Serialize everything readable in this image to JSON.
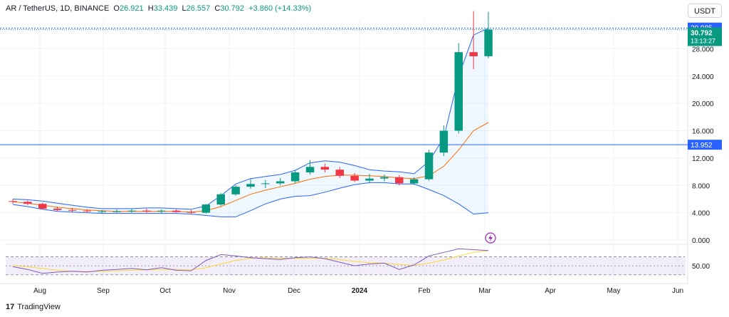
{
  "header": {
    "symbol": "AR / TetherUS, 1D, BINANCE",
    "open_label": "O",
    "open": "26.921",
    "high_label": "H",
    "high": "33.439",
    "low_label": "L",
    "low": "26.557",
    "close_label": "C",
    "close": "30.792",
    "change": "+3.860 (+14.33%)"
  },
  "currency_button": "USDT",
  "branding": {
    "logo_text": "17",
    "name": "TradingView"
  },
  "price_tags": {
    "high_line": "30.985",
    "last_price": "30.792",
    "countdown": "13:13:27",
    "support": "13.952"
  },
  "colors": {
    "up": "#089981",
    "down": "#f23645",
    "band": "#2962ff",
    "basis": "#ff6d00",
    "rsi": "#7e57c2",
    "rsi_ma": "#fdd835"
  },
  "chart_data": [
    {
      "type": "candlestick",
      "title": "",
      "xlabel": "",
      "ylabel": "",
      "y_ticks": [
        "0.000",
        "4.000",
        "8.000",
        "12.000",
        "16.000",
        "20.000",
        "24.000",
        "28.000"
      ],
      "x_ticks": [
        "Aug",
        "Sep",
        "Oct",
        "Nov",
        "Dec",
        "2024",
        "Feb",
        "Mar",
        "Apr",
        "May",
        "Jun"
      ],
      "ylim": [
        0,
        32
      ],
      "horizontal_lines": [
        30.985,
        13.952
      ],
      "series": [
        {
          "name": "",
          "x": [
            "Jul 23",
            "Jul 30",
            "Aug 6",
            "Aug 13",
            "Aug 20",
            "Aug 27",
            "Sep 3",
            "Sep 10",
            "Sep 17",
            "Sep 24",
            "Oct 1",
            "Oct 8",
            "Oct 15",
            "Oct 22",
            "Oct 29",
            "Nov 5",
            "Nov 12",
            "Nov 19",
            "Nov 26",
            "Dec 3",
            "Dec 10",
            "Dec 17",
            "Dec 24",
            "Dec 31",
            "Jan 7",
            "Jan 14",
            "Jan 21",
            "Jan 28",
            "Feb 4",
            "Feb 11",
            "Feb 18",
            "Feb 25",
            "Mar 1"
          ],
          "open": [
            5.7,
            5.6,
            5.3,
            4.6,
            4.4,
            4.3,
            4.2,
            4.2,
            4.2,
            4.3,
            4.2,
            4.3,
            4.1,
            4.0,
            5.2,
            6.7,
            7.8,
            8.2,
            8.3,
            8.6,
            9.9,
            10.7,
            10.3,
            9.4,
            8.7,
            9.0,
            9.2,
            8.3,
            8.9,
            12.8,
            16.0,
            27.5,
            26.9
          ],
          "high": [
            6.0,
            5.8,
            5.5,
            4.9,
            4.7,
            4.5,
            4.4,
            4.5,
            4.6,
            4.6,
            4.5,
            4.5,
            4.4,
            5.3,
            6.9,
            8.0,
            9.0,
            8.8,
            9.1,
            10.2,
            11.7,
            11.2,
            10.7,
            9.8,
            9.7,
            9.6,
            9.5,
            9.2,
            13.2,
            16.8,
            28.8,
            33.5,
            33.4
          ],
          "low": [
            5.3,
            5.1,
            4.5,
            4.2,
            4.1,
            4.0,
            3.9,
            4.0,
            4.0,
            4.0,
            3.9,
            4.0,
            3.8,
            3.9,
            5.0,
            6.5,
            7.5,
            7.6,
            8.0,
            8.3,
            9.6,
            9.9,
            9.1,
            8.5,
            8.3,
            8.6,
            8.0,
            8.1,
            8.7,
            12.3,
            15.6,
            25.0,
            26.6
          ],
          "close": [
            5.6,
            5.3,
            4.6,
            4.4,
            4.3,
            4.2,
            4.2,
            4.2,
            4.3,
            4.2,
            4.3,
            4.1,
            4.0,
            5.2,
            6.7,
            7.8,
            8.2,
            8.3,
            8.6,
            9.9,
            10.7,
            10.3,
            9.4,
            8.7,
            9.0,
            9.2,
            8.3,
            8.9,
            12.8,
            16.0,
            27.5,
            26.9,
            30.8
          ]
        }
      ],
      "bollinger": {
        "upper": [
          6.0,
          5.9,
          5.7,
          5.4,
          5.1,
          4.8,
          4.6,
          4.6,
          4.6,
          4.7,
          4.7,
          4.6,
          4.5,
          5.0,
          6.5,
          8.2,
          9.0,
          9.3,
          9.6,
          10.2,
          11.3,
          11.6,
          11.4,
          10.9,
          10.3,
          10.1,
          10.0,
          9.7,
          11.5,
          15.0,
          24.0,
          30.0,
          31.0
        ],
        "basis": [
          5.6,
          5.4,
          5.1,
          4.8,
          4.6,
          4.4,
          4.3,
          4.2,
          4.2,
          4.2,
          4.2,
          4.2,
          4.1,
          4.3,
          4.9,
          5.8,
          6.7,
          7.3,
          7.8,
          8.3,
          8.9,
          9.3,
          9.5,
          9.5,
          9.4,
          9.3,
          9.1,
          9.0,
          9.4,
          10.8,
          13.2,
          16.0,
          17.2
        ],
        "lower": [
          5.2,
          4.9,
          4.5,
          4.2,
          4.1,
          4.0,
          3.9,
          3.9,
          3.9,
          3.9,
          3.9,
          3.9,
          3.8,
          3.6,
          3.4,
          3.4,
          4.3,
          5.3,
          6.0,
          6.4,
          6.5,
          7.0,
          7.6,
          8.1,
          8.4,
          8.4,
          8.2,
          8.2,
          7.4,
          6.5,
          5.3,
          3.8,
          4.0
        ]
      }
    },
    {
      "type": "line",
      "title": "",
      "y_ticks": [
        "50.00"
      ],
      "ylim": [
        20,
        90
      ],
      "guide_levels": [
        70,
        50,
        30
      ],
      "series": [
        {
          "name": "",
          "x": [
            "Jul 23",
            "Jul 30",
            "Aug 6",
            "Aug 13",
            "Aug 20",
            "Aug 27",
            "Sep 3",
            "Sep 10",
            "Sep 17",
            "Sep 24",
            "Oct 1",
            "Oct 8",
            "Oct 15",
            "Oct 22",
            "Oct 29",
            "Nov 5",
            "Nov 12",
            "Nov 19",
            "Nov 26",
            "Dec 3",
            "Dec 10",
            "Dec 17",
            "Dec 24",
            "Dec 31",
            "Jan 7",
            "Jan 14",
            "Jan 21",
            "Jan 28",
            "Feb 4",
            "Feb 11",
            "Feb 18",
            "Feb 25",
            "Mar 1"
          ],
          "values": [
            48,
            42,
            33,
            36,
            38,
            36,
            40,
            42,
            44,
            41,
            46,
            40,
            39,
            62,
            75,
            72,
            68,
            66,
            64,
            68,
            70,
            66,
            58,
            50,
            54,
            56,
            42,
            52,
            72,
            80,
            88,
            86,
            84
          ]
        },
        {
          "name": "",
          "x": [
            "Jul 23",
            "Jul 30",
            "Aug 6",
            "Aug 13",
            "Aug 20",
            "Aug 27",
            "Sep 3",
            "Sep 10",
            "Sep 17",
            "Sep 24",
            "Oct 1",
            "Oct 8",
            "Oct 15",
            "Oct 22",
            "Oct 29",
            "Nov 5",
            "Nov 12",
            "Nov 19",
            "Nov 26",
            "Dec 3",
            "Dec 10",
            "Dec 17",
            "Dec 24",
            "Dec 31",
            "Jan 7",
            "Jan 14",
            "Jan 21",
            "Jan 28",
            "Feb 4",
            "Feb 11",
            "Feb 18",
            "Feb 25",
            "Mar 1"
          ],
          "values": [
            50,
            48,
            44,
            40,
            38,
            37,
            38,
            39,
            40,
            41,
            42,
            42,
            41,
            46,
            54,
            62,
            67,
            68,
            67,
            67,
            67,
            67,
            64,
            60,
            57,
            56,
            53,
            51,
            56,
            63,
            72,
            80,
            84
          ]
        }
      ]
    }
  ]
}
